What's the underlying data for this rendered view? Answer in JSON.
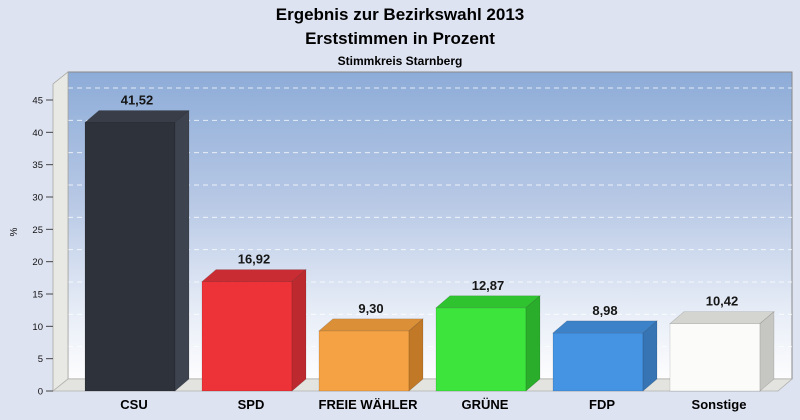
{
  "page": {
    "background_color": "#dee3f2"
  },
  "header": {
    "title_line1": "Ergebnis zur Bezirkswahl 2013",
    "title_line2": "Erststimmen in Prozent",
    "subtitle": "Stimmkreis Starnberg"
  },
  "chart_data": {
    "type": "bar",
    "style": "3d-bars",
    "title": "Ergebnis zur Bezirkswahl 2013",
    "subtitle": "Erststimmen in Prozent",
    "caption": "Stimmkreis Starnberg",
    "categories": [
      "CSU",
      "SPD",
      "FREIE WÄHLER",
      "GRÜNE",
      "FDP",
      "Sonstige"
    ],
    "values": [
      41.52,
      16.92,
      9.3,
      12.87,
      8.98,
      10.42
    ],
    "value_labels": [
      "41,52",
      "16,92",
      "9,30",
      "12,87",
      "8,98",
      "10,42"
    ],
    "xlabel": "",
    "ylabel": "%",
    "ylim": [
      0,
      45
    ],
    "ytick_step": 5,
    "ytick_labels": [
      "0",
      "5",
      "10",
      "15",
      "20",
      "25",
      "30",
      "35",
      "40",
      "45"
    ],
    "grid": "horizontal-dashed",
    "legend": "none",
    "colors": [
      {
        "name": "csu",
        "front": "#2e323a",
        "top": "#383d47",
        "side": "#3d434f"
      },
      {
        "name": "spd",
        "front": "#ee3338",
        "top": "#c92c32",
        "side": "#bc2a30"
      },
      {
        "name": "freie-waehler",
        "front": "#f5a244",
        "top": "#db9038",
        "side": "#c17827"
      },
      {
        "name": "gruene",
        "front": "#3ce43c",
        "top": "#2fc42f",
        "side": "#2aad2a"
      },
      {
        "name": "fdp",
        "front": "#4594e3",
        "top": "#3c82c8",
        "side": "#3674b4"
      },
      {
        "name": "sonstige",
        "front": "#fbfbf9",
        "top": "#d4d4d0",
        "side": "#c6c6c2"
      }
    ],
    "plot_background_gradient": [
      "#8dacd8",
      "#b7c8e5",
      "#e7edf7",
      "#fdfdfe"
    ],
    "wall_color": "#e8e8e4",
    "floor_color": "#e3e3df"
  }
}
